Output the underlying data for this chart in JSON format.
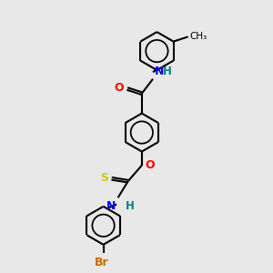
{
  "bg_color": "#e8e8e8",
  "bond_color": "#000000",
  "atom_colors": {
    "O": "#ff0000",
    "N": "#0000ff",
    "S": "#cccc00",
    "Br": "#cc6600",
    "H": "#008080",
    "C": "#000000"
  },
  "figsize": [
    3.0,
    3.0
  ],
  "dpi": 100
}
